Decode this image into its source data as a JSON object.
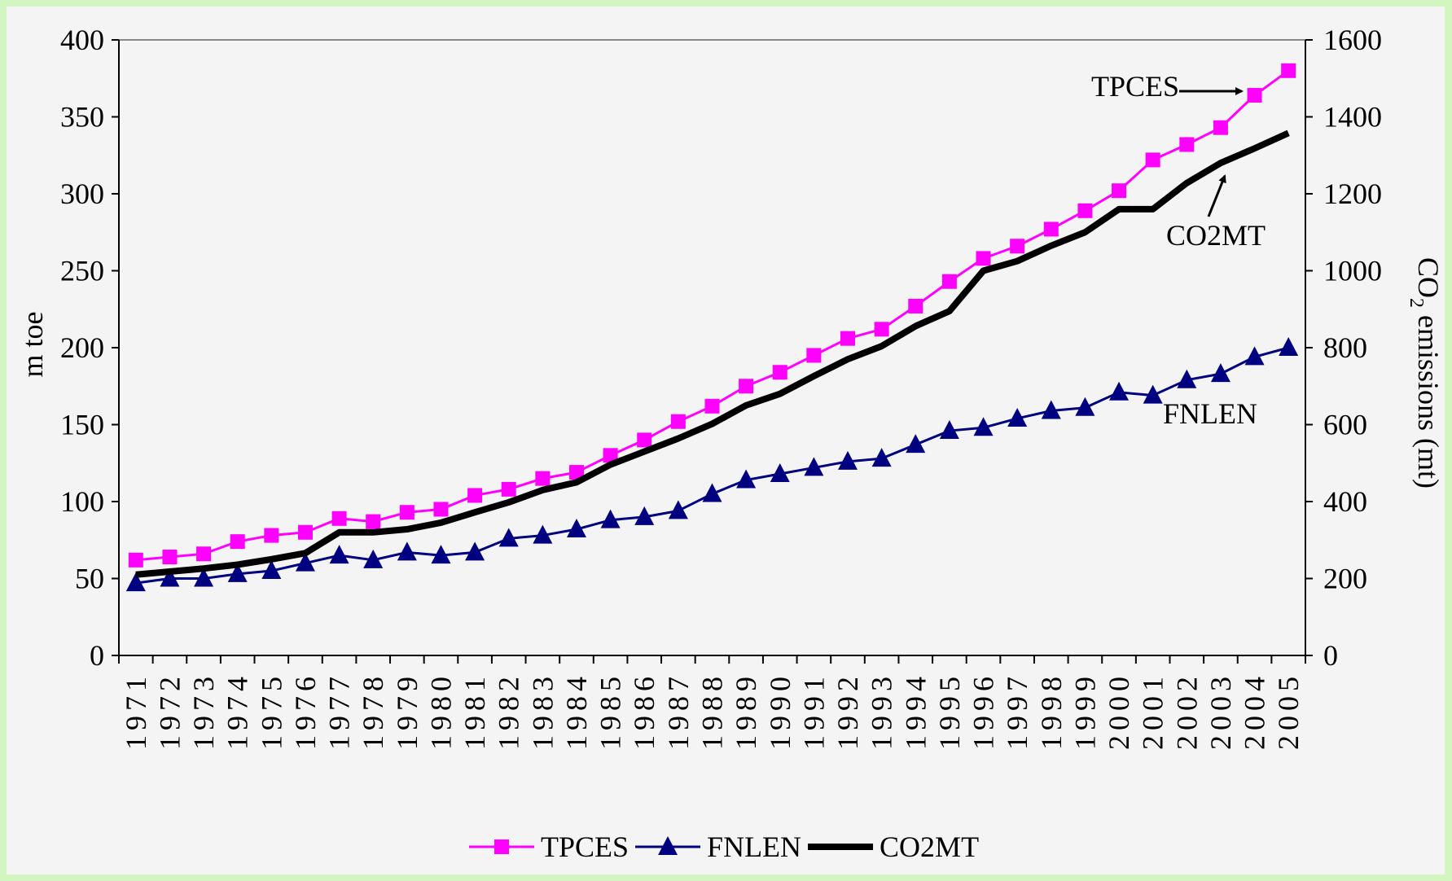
{
  "chart_data": {
    "type": "line",
    "title": "",
    "x": [
      "1971",
      "1972",
      "1973",
      "1974",
      "1975",
      "1976",
      "1977",
      "1978",
      "1979",
      "1980",
      "1981",
      "1982",
      "1983",
      "1984",
      "1985",
      "1986",
      "1987",
      "1988",
      "1989",
      "1990",
      "1991",
      "1992",
      "1993",
      "1994",
      "1995",
      "1996",
      "1997",
      "1998",
      "1999",
      "2000",
      "2001",
      "2002",
      "2003",
      "2004",
      "2005"
    ],
    "y_left": {
      "label": "m toe",
      "ylim": [
        0,
        400
      ],
      "ticks": [
        0,
        50,
        100,
        150,
        200,
        250,
        300,
        350,
        400
      ]
    },
    "y_right": {
      "label": "CO2 emissions (mt)",
      "label_main": "CO",
      "label_sub": "2",
      "label_rest": " emissions (mt)",
      "ylim": [
        0,
        1600
      ],
      "ticks": [
        0,
        200,
        400,
        600,
        800,
        1000,
        1200,
        1400,
        1600
      ]
    },
    "series": [
      {
        "name": "TPCES",
        "axis": "left",
        "color": "#ff00ff",
        "marker": "square",
        "values": [
          62,
          64,
          66,
          74,
          78,
          80,
          89,
          87,
          93,
          95,
          104,
          108,
          115,
          119,
          130,
          140,
          152,
          162,
          175,
          184,
          195,
          206,
          212,
          227,
          243,
          258,
          266,
          277,
          289,
          302,
          322,
          332,
          343,
          364,
          380
        ]
      },
      {
        "name": "FNLEN",
        "axis": "left",
        "color": "#000080",
        "marker": "triangle",
        "values": [
          47,
          50,
          50,
          53,
          55,
          60,
          65,
          62,
          67,
          65,
          67,
          76,
          78,
          82,
          88,
          90,
          94,
          105,
          114,
          118,
          122,
          126,
          128,
          137,
          146,
          148,
          154,
          159,
          161,
          171,
          169,
          179,
          183,
          194,
          200
        ]
      },
      {
        "name": "CO2MT",
        "axis": "right",
        "color": "#000000",
        "marker": "none",
        "values": [
          210,
          218,
          226,
          236,
          250,
          266,
          320,
          320,
          328,
          345,
          372,
          398,
          430,
          450,
          496,
          530,
          564,
          602,
          650,
          680,
          726,
          770,
          804,
          856,
          895,
          1000,
          1025,
          1065,
          1100,
          1160,
          1160,
          1228,
          1280,
          1318,
          1358
        ]
      }
    ],
    "annotations": [
      {
        "text": "TPCES",
        "target_series": "TPCES",
        "target_x": "2004"
      },
      {
        "text": "CO2MT",
        "target_series": "CO2MT",
        "target_x": "2003"
      },
      {
        "text": "FNLEN",
        "target_series": "FNLEN",
        "target_x": "2001"
      }
    ],
    "legend": {
      "placement": "bottom",
      "entries": [
        "TPCES",
        "FNLEN",
        "CO2MT"
      ]
    },
    "grid": false
  }
}
